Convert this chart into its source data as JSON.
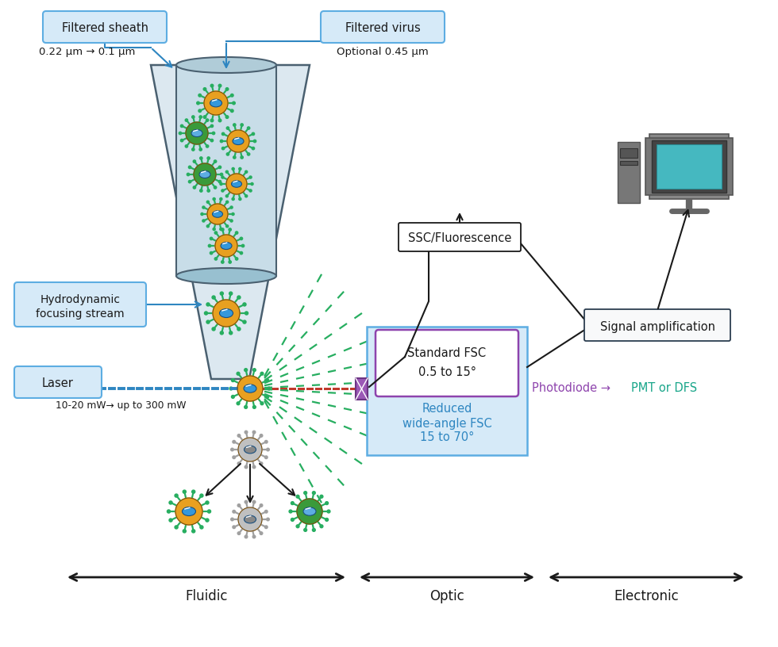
{
  "bg_color": "#ffffff",
  "labels": {
    "filtered_sheath": "Filtered sheath",
    "filtered_sheath_sub": "0.22 μm → 0.1 μm",
    "filtered_virus": "Filtered virus",
    "filtered_virus_sub": "Optional 0.45 μm",
    "hydro_line1": "Hydrodynamic",
    "hydro_line2": "focusing stream",
    "laser": "Laser",
    "laser_sub": "10-20 mW→ up to 300 mW",
    "ssc": "SSC/Fluorescence",
    "signal": "Signal amplification",
    "standard_fsc_line1": "Standard FSC",
    "standard_fsc_line2": "0.5 to 15°",
    "reduced_line1": "Reduced",
    "reduced_line2": "wide-angle FSC",
    "reduced_line3": "15 to 70°",
    "photodiode": "Photodiode →",
    "pmt": "PMT or DFS",
    "fluidic": "Fluidic",
    "optic": "Optic",
    "electronic": "Electronic"
  },
  "colors": {
    "box_fill": "#d6eaf8",
    "box_edge": "#5dade2",
    "fsc_box_fill": "#d6eaf8",
    "fsc_box_edge": "#5dade2",
    "fsc_inner_edge": "#8e44ad",
    "laser_blue": "#2e86c1",
    "laser_red": "#c0392b",
    "scatter_green": "#27ae60",
    "arrow_blue": "#2e86c1",
    "text_blue": "#2e86c1",
    "text_purple": "#8e44ad",
    "text_teal": "#17a589",
    "funnel_fill": "#dce8f0",
    "funnel_edge": "#4a6070",
    "inner_tube_fill": "#c8dde8",
    "inner_tube_edge": "#4a6070",
    "blocker_fill": "#9b59b6",
    "blocker_edge": "#6c3483",
    "signal_box_fill": "#f8f9fa",
    "signal_box_edge": "#2c3e50",
    "black": "#1a1a1a",
    "white": "#ffffff",
    "monitor_body": "#666666",
    "monitor_screen": "#45b8c0",
    "virus_orange": "#e8a020",
    "virus_green_body": "#3a9a3a",
    "virus_spike_green": "#27ae60",
    "virus_inner_blue": "#3498db",
    "virus_gray": "#c0c0c0"
  }
}
